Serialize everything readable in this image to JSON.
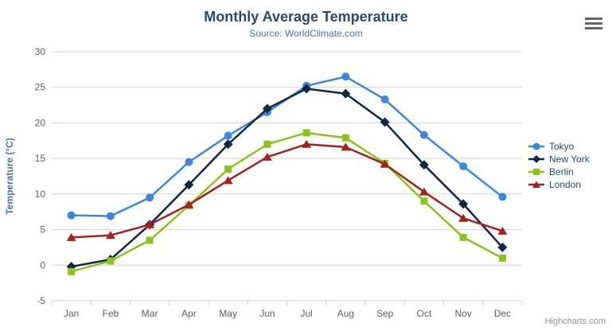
{
  "header": {
    "title": "Monthly Average Temperature",
    "subtitle": "Source: WorldClimate.com"
  },
  "icons": {
    "export_menu": "hamburger-menu-icon"
  },
  "credits": {
    "text": "Highcharts.com"
  },
  "chart_data": {
    "type": "line",
    "title": "Monthly Average Temperature",
    "subtitle": "Source: WorldClimate.com",
    "categories": [
      "Jan",
      "Feb",
      "Mar",
      "Apr",
      "May",
      "Jun",
      "Jul",
      "Aug",
      "Sep",
      "Oct",
      "Nov",
      "Dec"
    ],
    "xlabel": "",
    "ylabel": "Temperature (°C)",
    "ylim": [
      -5,
      30
    ],
    "ytick_interval": 5,
    "grid": true,
    "legend_position": "right",
    "series": [
      {
        "name": "Tokyo",
        "color": "#3a87dd",
        "marker": "circle",
        "values": [
          7.0,
          6.9,
          9.5,
          14.5,
          18.2,
          21.5,
          25.2,
          26.5,
          23.3,
          18.3,
          13.9,
          9.6
        ]
      },
      {
        "name": "New York",
        "color": "#13263f",
        "marker": "diamond",
        "values": [
          -0.2,
          0.8,
          5.7,
          11.3,
          17.0,
          22.0,
          24.8,
          24.1,
          20.1,
          14.1,
          8.6,
          2.5
        ]
      },
      {
        "name": "Berlin",
        "color": "#8bc21c",
        "marker": "square",
        "values": [
          -0.9,
          0.6,
          3.5,
          8.4,
          13.5,
          17.0,
          18.6,
          17.9,
          14.3,
          9.0,
          3.9,
          1.0
        ]
      },
      {
        "name": "London",
        "color": "#a32121",
        "marker": "triangle",
        "values": [
          3.9,
          4.2,
          5.7,
          8.5,
          11.9,
          15.2,
          17.0,
          16.6,
          14.2,
          10.3,
          6.6,
          4.8
        ]
      }
    ],
    "style": {
      "grid_color": "#d2d2d2",
      "axis_line_color": "#c0d0e0",
      "axis_label_color": "#606060",
      "y_title_color": "#4d759e",
      "title_color": "#274b6d",
      "subtitle_color": "#4d759e",
      "legend_text_color": "#274b6d",
      "credits_color": "#909090"
    }
  }
}
